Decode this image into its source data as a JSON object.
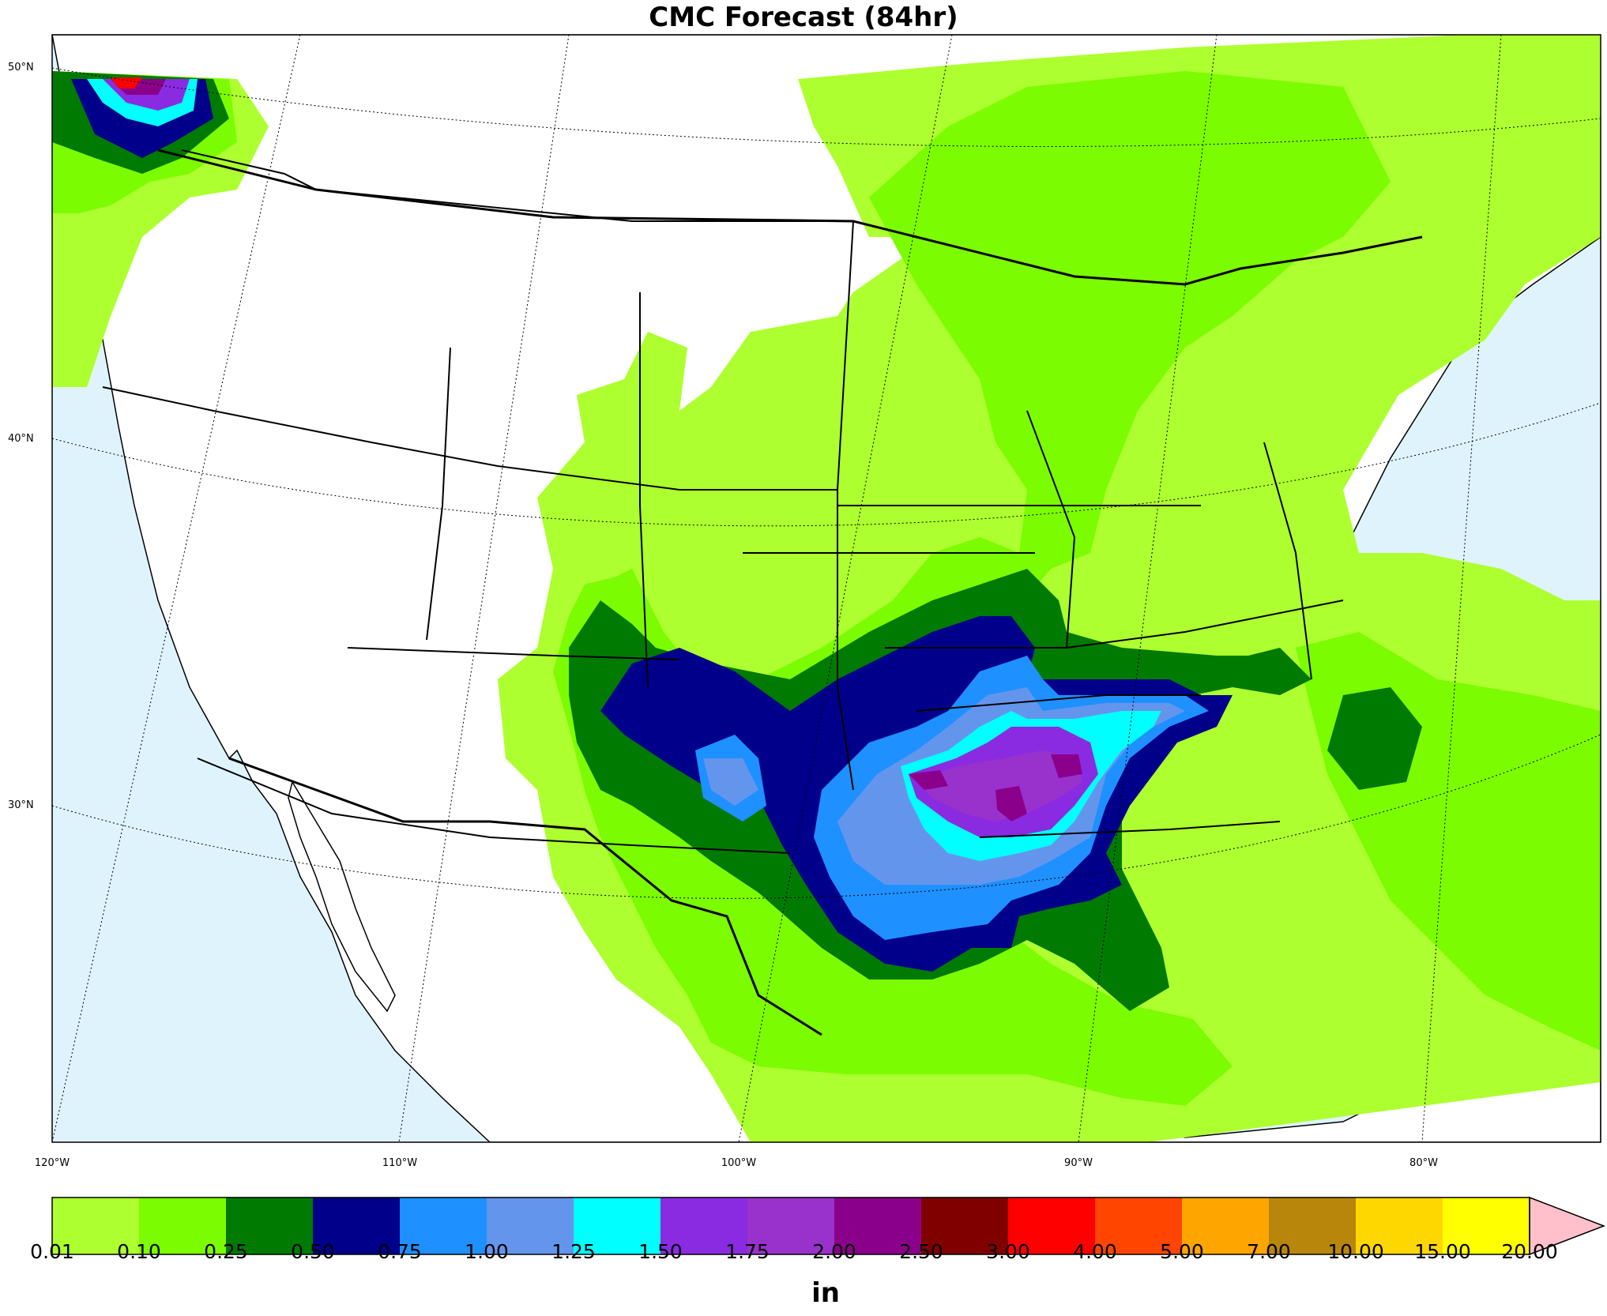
{
  "title": "CMC Forecast (84hr)",
  "lat_labels": [
    "50°N",
    "40°N",
    "30°N"
  ],
  "lon_labels": [
    "120°W",
    "110°W",
    "100°W",
    "90°W",
    "80°W"
  ],
  "colorbar": {
    "levels": [
      "0.01",
      "0.10",
      "0.25",
      "0.50",
      "0.75",
      "1.00",
      "1.25",
      "1.50",
      "1.75",
      "2.00",
      "2.50",
      "3.00",
      "4.00",
      "5.00",
      "7.00",
      "10.00",
      "15.00",
      "20.00"
    ],
    "colors": [
      "#adff2f",
      "#7cfc00",
      "#007a00",
      "#00008b",
      "#1e90ff",
      "#6495ed",
      "#00ffff",
      "#8a2be2",
      "#9932cc",
      "#8b008b",
      "#800000",
      "#ff0000",
      "#ff4500",
      "#ffa500",
      "#b8860b",
      "#ffd700",
      "#ffff00"
    ],
    "extend_color": "#ffc0cb",
    "units": "in"
  },
  "colors": {
    "ocean": "#dff3fc",
    "land": "#ffffff"
  }
}
